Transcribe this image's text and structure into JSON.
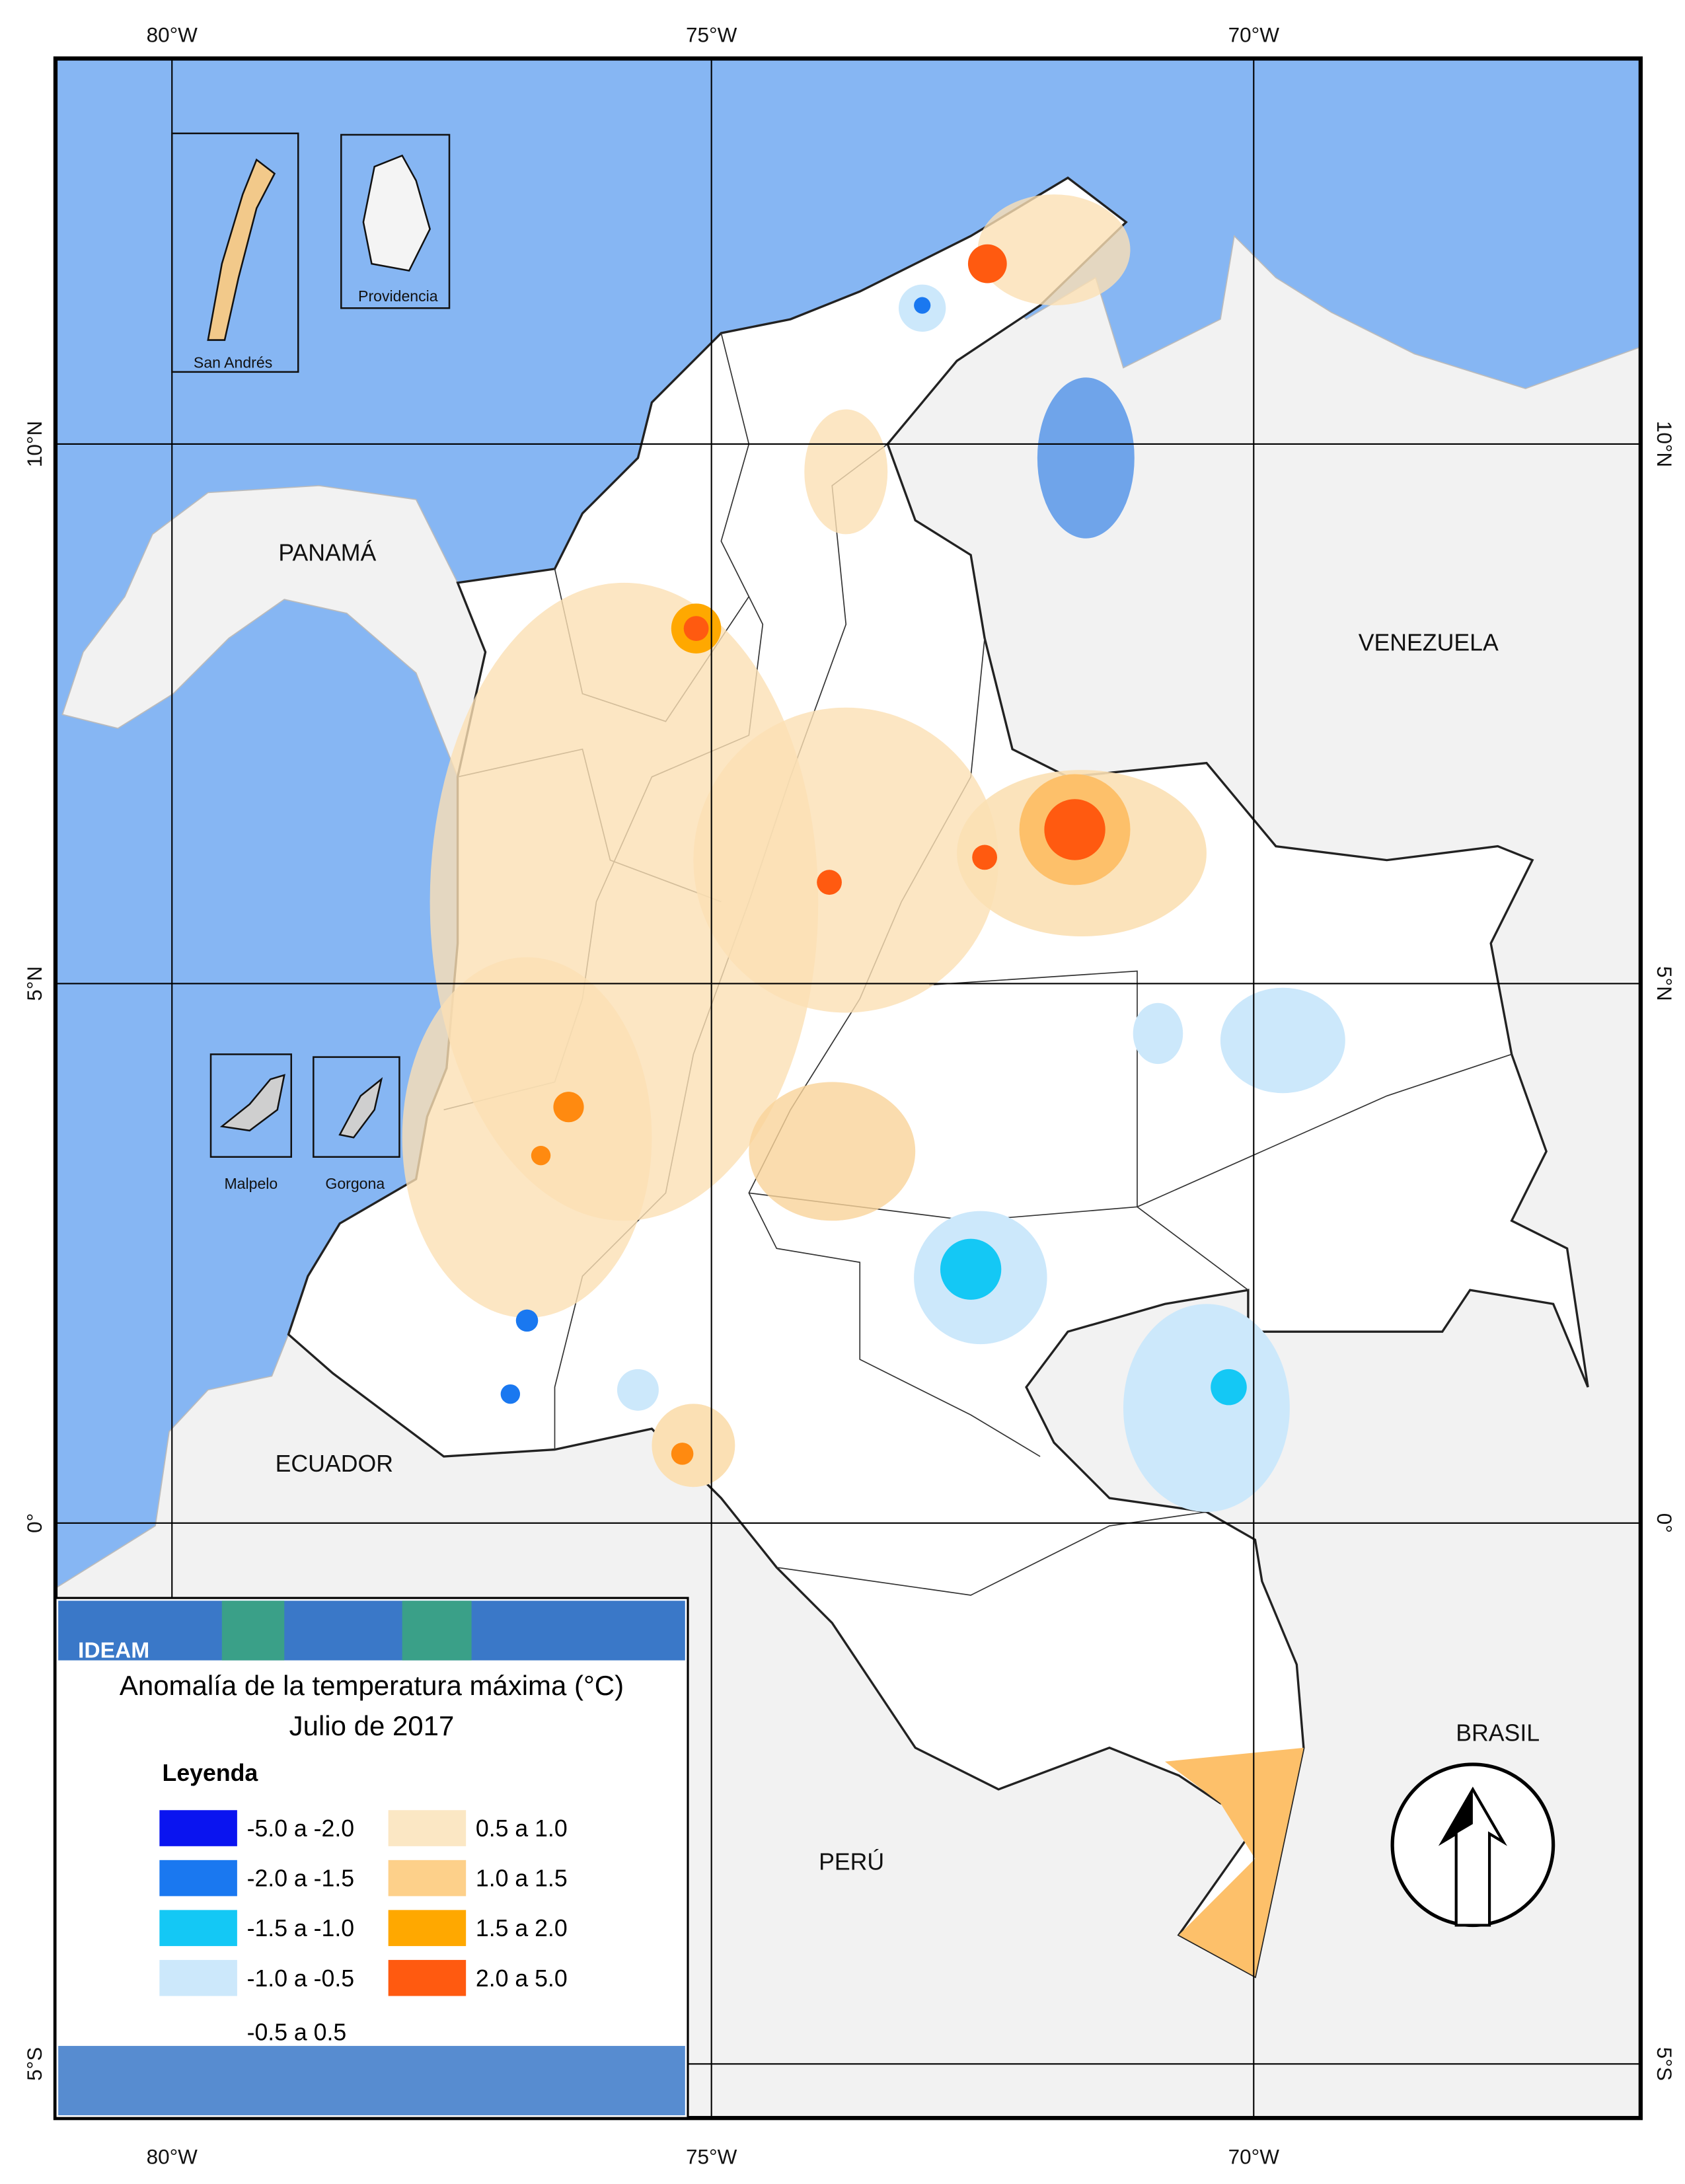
{
  "graticule": {
    "top": [
      "80°W",
      "75°W",
      "70°W"
    ],
    "bottom": [
      "80°W",
      "75°W",
      "70°W"
    ],
    "left": [
      "10°N",
      "5°N",
      "0°",
      "5°S"
    ],
    "right": [
      "10°N",
      "5°N",
      "0°",
      "5°S"
    ]
  },
  "countries": {
    "panama": "PANAMÁ",
    "venezuela": "VENEZUELA",
    "ecuador": "ECUADOR",
    "brasil": "BRASIL",
    "peru": "PERÚ"
  },
  "insets": {
    "san_andres": "San Andrés",
    "providencia": "Providencia",
    "malpelo": "Malpelo",
    "gorgona": "Gorgona"
  },
  "legend": {
    "logo": "IDEAM",
    "title": "Anomalía de la temperatura máxima (°C)",
    "subtitle": "Julio de 2017",
    "heading": "Leyenda",
    "items": [
      {
        "label": "-5.0 a -2.0",
        "color": "#0a14f0"
      },
      {
        "label": "-2.0 a -1.5",
        "color": "#1a78f0"
      },
      {
        "label": "-1.5 a -1.0",
        "color": "#14c8f5"
      },
      {
        "label": "-1.0 a -0.5",
        "color": "#cce8fb"
      },
      {
        "label": "-0.5 a 0.5",
        "color": "#ffffff"
      },
      {
        "label": "0.5 a 1.0",
        "color": "#fbe7c4"
      },
      {
        "label": "1.0 a 1.5",
        "color": "#fdd08a"
      },
      {
        "label": "1.5 a 2.0",
        "color": "#ffa800"
      },
      {
        "label": "2.0 a 5.0",
        "color": "#ff5a10"
      }
    ]
  }
}
